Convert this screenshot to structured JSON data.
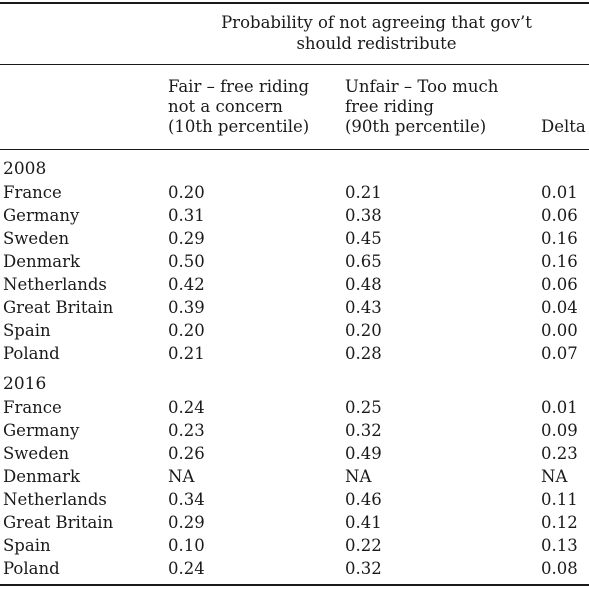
{
  "table": {
    "spanning_header": "Probability of not agreeing that gov’t should redistribute",
    "columns": [
      "Fair – free riding not a concern (10th percentile)",
      "Unfair – Too much free riding (90th percentile)",
      "Delta"
    ],
    "groups": [
      {
        "year": "2008",
        "rows": [
          {
            "country": "France",
            "fair": "0.20",
            "unfair": "0.21",
            "delta": "0.01"
          },
          {
            "country": "Germany",
            "fair": "0.31",
            "unfair": "0.38",
            "delta": "0.06"
          },
          {
            "country": "Sweden",
            "fair": "0.29",
            "unfair": "0.45",
            "delta": "0.16"
          },
          {
            "country": "Denmark",
            "fair": "0.50",
            "unfair": "0.65",
            "delta": "0.16"
          },
          {
            "country": "Netherlands",
            "fair": "0.42",
            "unfair": "0.48",
            "delta": "0.06"
          },
          {
            "country": "Great Britain",
            "fair": "0.39",
            "unfair": "0.43",
            "delta": "0.04"
          },
          {
            "country": "Spain",
            "fair": "0.20",
            "unfair": "0.20",
            "delta": "0.00"
          },
          {
            "country": "Poland",
            "fair": "0.21",
            "unfair": "0.28",
            "delta": "0.07"
          }
        ]
      },
      {
        "year": "2016",
        "rows": [
          {
            "country": "France",
            "fair": "0.24",
            "unfair": "0.25",
            "delta": "0.01"
          },
          {
            "country": "Germany",
            "fair": "0.23",
            "unfair": "0.32",
            "delta": "0.09"
          },
          {
            "country": "Sweden",
            "fair": "0.26",
            "unfair": "0.49",
            "delta": "0.23"
          },
          {
            "country": "Denmark",
            "fair": "NA",
            "unfair": "NA",
            "delta": "NA"
          },
          {
            "country": "Netherlands",
            "fair": "0.34",
            "unfair": "0.46",
            "delta": "0.11"
          },
          {
            "country": "Great Britain",
            "fair": "0.29",
            "unfair": "0.41",
            "delta": "0.12"
          },
          {
            "country": "Spain",
            "fair": "0.10",
            "unfair": "0.22",
            "delta": "0.13"
          },
          {
            "country": "Poland",
            "fair": "0.24",
            "unfair": "0.32",
            "delta": "0.08"
          }
        ]
      }
    ]
  }
}
